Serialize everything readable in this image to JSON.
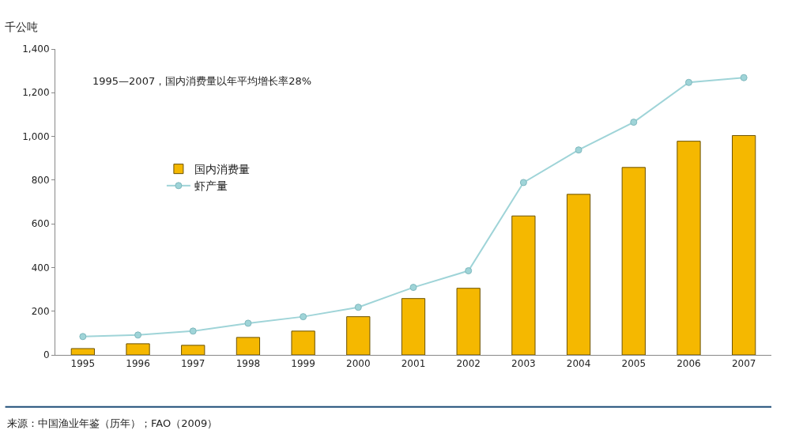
{
  "chart_data": {
    "type": "bar",
    "ylabel": "千公吨",
    "categories": [
      "1995",
      "1996",
      "1997",
      "1998",
      "1999",
      "2000",
      "2001",
      "2002",
      "2003",
      "2004",
      "2005",
      "2006",
      "2007"
    ],
    "series": [
      {
        "name": "国内消费量",
        "color": "#f5b800",
        "values": [
          29,
          51,
          44,
          80,
          109,
          175,
          258,
          305,
          636,
          735,
          858,
          978,
          1004
        ]
      },
      {
        "name": "虾产量",
        "type": "line",
        "color": "#9fd4d8",
        "marker": "circle",
        "values": [
          84,
          91,
          109,
          145,
          175,
          218,
          309,
          385,
          789,
          938,
          1065,
          1247,
          1269
        ]
      }
    ],
    "ylim": [
      0,
      1400
    ],
    "yticks": [
      {
        "value": 0,
        "label": "0"
      },
      {
        "value": 200,
        "label": "200"
      },
      {
        "value": 400,
        "label": "400"
      },
      {
        "value": 600,
        "label": "600"
      },
      {
        "value": 800,
        "label": "800"
      },
      {
        "value": 1000,
        "label": "1,000"
      },
      {
        "value": 1200,
        "label": "1,200"
      },
      {
        "value": 1400,
        "label": "1,400"
      }
    ],
    "annotations": [
      "1995—2007，国内消费量以年平均增长率28%",
      "来源：中国渔业年鉴（历年）；FAO（2009）"
    ],
    "legend": "left"
  }
}
